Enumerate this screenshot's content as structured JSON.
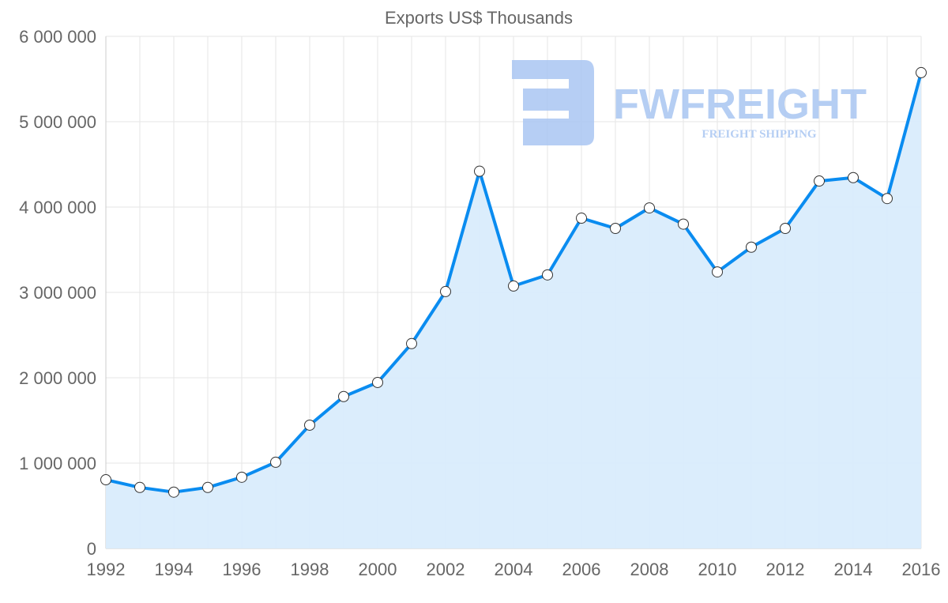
{
  "chart_data": {
    "type": "area",
    "title": "Exports US$ Thousands",
    "xlabel": "",
    "ylabel": "",
    "ylim": [
      0,
      6000000
    ],
    "yticks": [
      "0",
      "1 000 000",
      "2 000 000",
      "3 000 000",
      "4 000 000",
      "5 000 000",
      "6 000 000"
    ],
    "ytick_values": [
      0,
      1000000,
      2000000,
      3000000,
      4000000,
      5000000,
      6000000
    ],
    "xticks": [
      "1992",
      "1994",
      "1996",
      "1998",
      "2000",
      "2002",
      "2004",
      "2006",
      "2008",
      "2010",
      "2012",
      "2014",
      "2016"
    ],
    "grid": true,
    "legend": "none",
    "series": [
      {
        "name": "Exports US$ Thousands",
        "x": [
          1992,
          1993,
          1994,
          1995,
          1996,
          1997,
          1998,
          1999,
          2000,
          2001,
          2002,
          2003,
          2004,
          2005,
          2006,
          2007,
          2008,
          2009,
          2010,
          2011,
          2012,
          2013,
          2014,
          2015,
          2016
        ],
        "values": [
          805000,
          715000,
          660000,
          715000,
          835000,
          1010000,
          1445000,
          1780000,
          1945000,
          2400000,
          3010000,
          4420000,
          3075000,
          3205000,
          3870000,
          3750000,
          3990000,
          3800000,
          3240000,
          3530000,
          3750000,
          4305000,
          4345000,
          4100000,
          5575000
        ],
        "line_color": "#0a8cf0",
        "fill_color": "#d9ecfc"
      }
    ]
  },
  "watermark": {
    "brand": "FWFREIGHT",
    "tagline": "FREIGHT SHIPPING",
    "color": "#a9c6f2"
  }
}
